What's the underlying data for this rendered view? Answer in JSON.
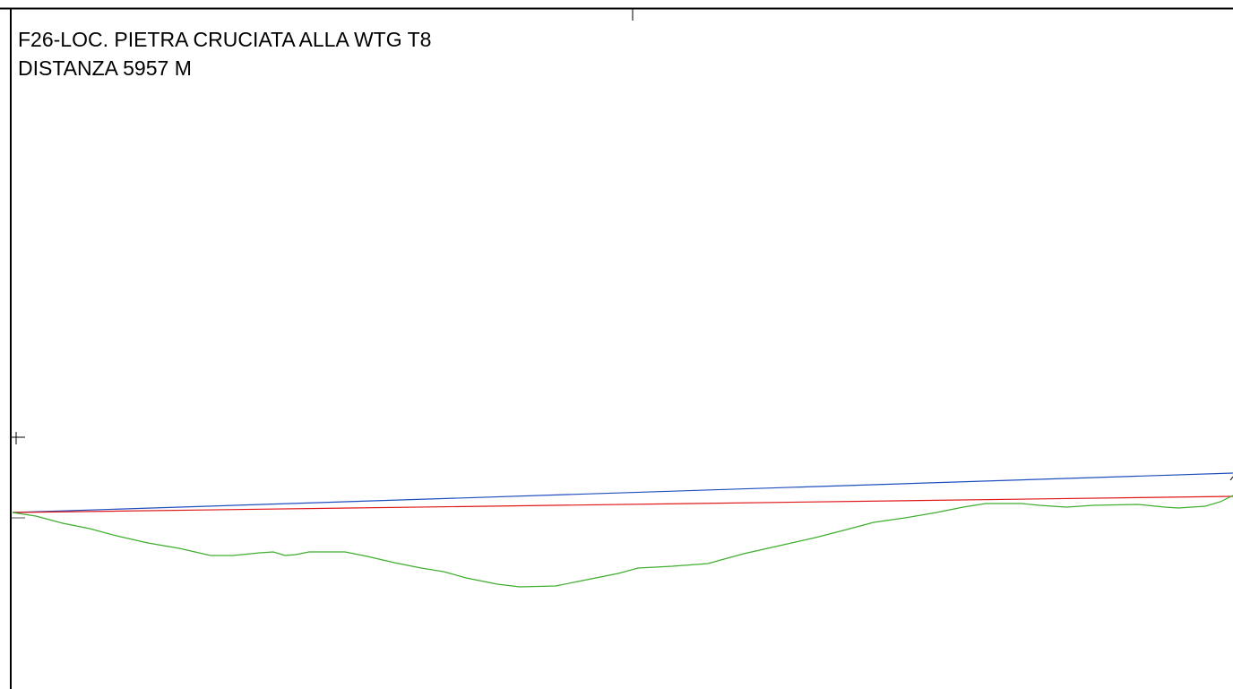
{
  "profile": {
    "title": "F26-LOC. PIETRA CRUCIATA ALLA WTG T8",
    "distance_label": "DISTANZA 5957 M"
  },
  "colors": {
    "frame": "#000000",
    "sight_line_top": "#1f4fbf",
    "sight_line_base": "#e0181a",
    "terrain": "#3fae2e"
  }
}
